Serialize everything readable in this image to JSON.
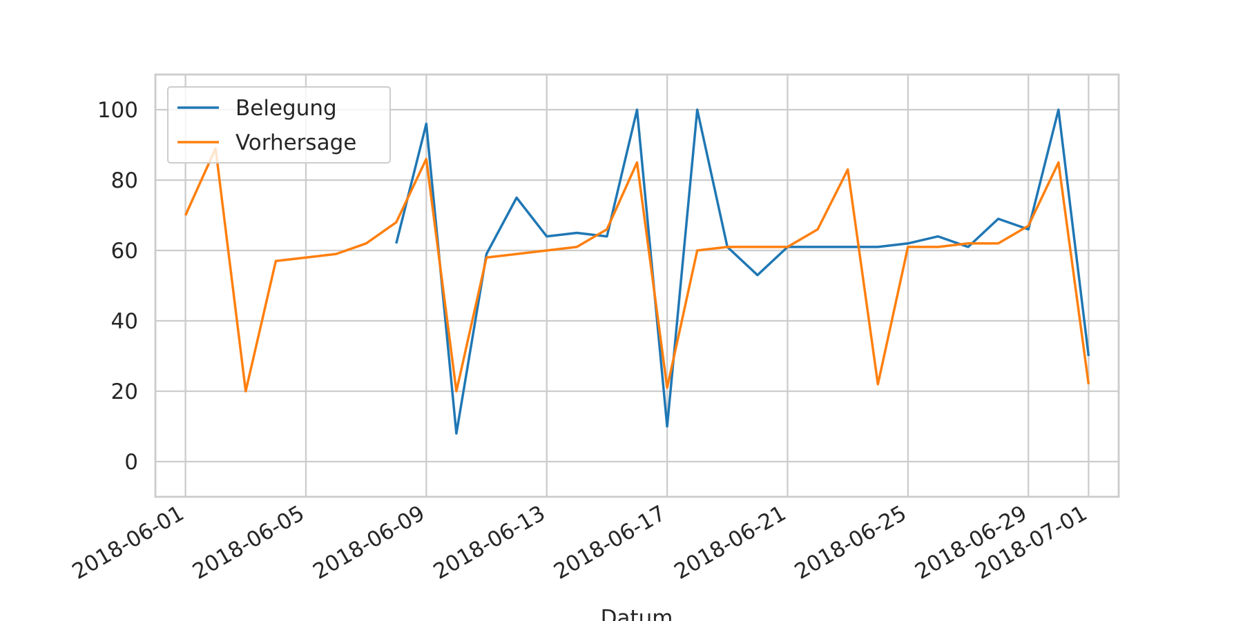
{
  "chart_data": {
    "type": "line",
    "x_label": "Datum",
    "x": [
      "2018-06-01",
      "2018-06-02",
      "2018-06-03",
      "2018-06-04",
      "2018-06-05",
      "2018-06-06",
      "2018-06-07",
      "2018-06-08",
      "2018-06-09",
      "2018-06-10",
      "2018-06-11",
      "2018-06-12",
      "2018-06-13",
      "2018-06-14",
      "2018-06-15",
      "2018-06-16",
      "2018-06-17",
      "2018-06-18",
      "2018-06-19",
      "2018-06-20",
      "2018-06-21",
      "2018-06-22",
      "2018-06-23",
      "2018-06-24",
      "2018-06-25",
      "2018-06-26",
      "2018-06-27",
      "2018-06-28",
      "2018-06-29",
      "2018-06-30",
      "2018-07-01"
    ],
    "series": [
      {
        "name": "Belegung",
        "color": "#1f77b4",
        "values": [
          null,
          null,
          null,
          null,
          null,
          null,
          null,
          62,
          96,
          8,
          59,
          75,
          64,
          65,
          64,
          100,
          10,
          100,
          61,
          53,
          61,
          61,
          61,
          61,
          62,
          64,
          61,
          69,
          66,
          100,
          30
        ]
      },
      {
        "name": "Vorhersage",
        "color": "#ff7f0e",
        "values": [
          70,
          89,
          20,
          57,
          58,
          59,
          62,
          68,
          86,
          20,
          58,
          59,
          60,
          61,
          66,
          85,
          21,
          60,
          61,
          61,
          61,
          66,
          83,
          22,
          61,
          61,
          62,
          62,
          67,
          85,
          22
        ]
      }
    ],
    "xlim": [
      "2018-05-31",
      "2018-07-02"
    ],
    "xticks": [
      "2018-06-01",
      "2018-06-05",
      "2018-06-09",
      "2018-06-13",
      "2018-06-17",
      "2018-06-21",
      "2018-06-25",
      "2018-06-29",
      "2018-07-01"
    ],
    "ylim": [
      -10,
      110
    ],
    "yticks": [
      0,
      20,
      40,
      60,
      80,
      100
    ],
    "grid": true,
    "legend": "upper-left"
  }
}
